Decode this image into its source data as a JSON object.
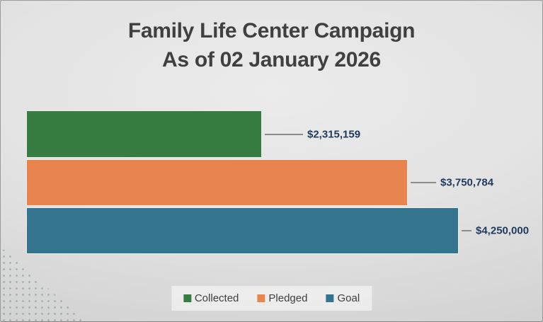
{
  "slide": {
    "title": {
      "line1": "Family Life Center Campaign",
      "line2": "As of 02 January 2026"
    }
  },
  "chart_data": {
    "type": "bar",
    "orientation": "horizontal",
    "title": "Family Life Center Campaign",
    "subtitle": "As of 02 January 2026",
    "categories": [
      "Collected",
      "Pledged",
      "Goal"
    ],
    "values": [
      2315159,
      3750784,
      4250000
    ],
    "value_labels": [
      "$2,315,159",
      "$3,750,784",
      "$4,250,000"
    ],
    "colors": [
      "#377d41",
      "#e8854f",
      "#33748f"
    ],
    "xlim": [
      0,
      4250000
    ],
    "grid": false,
    "data_label_color": "#1f3a5e",
    "leader_line_color": "#8c8c8c",
    "legend": {
      "position": "bottom",
      "entries": [
        "Collected",
        "Pledged",
        "Goal"
      ]
    }
  }
}
